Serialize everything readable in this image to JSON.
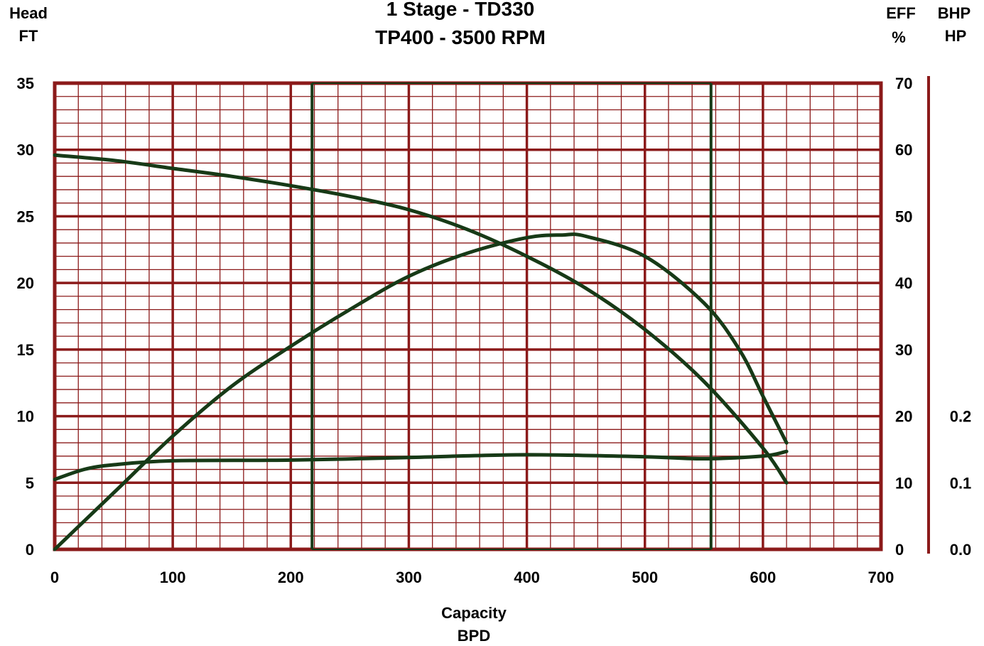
{
  "chart_data": {
    "type": "line",
    "title_lines": [
      "1 Stage - TD330",
      "TP400 - 3500 RPM"
    ],
    "left_axis": {
      "label_lines": [
        "Head",
        "FT"
      ],
      "ylim": [
        0,
        35
      ],
      "ticks": [
        0,
        5,
        10,
        15,
        20,
        25,
        30,
        35
      ]
    },
    "right_axis_eff": {
      "label_lines": [
        "EFF",
        "%"
      ],
      "ylim": [
        0,
        70
      ],
      "ticks": [
        0,
        10,
        20,
        30,
        40,
        50,
        60,
        70
      ]
    },
    "right_axis_bhp": {
      "label_lines": [
        "BHP",
        "HP"
      ],
      "ticks": [
        "0.0",
        "0.1",
        "0.2"
      ],
      "tick_head_equiv": [
        0,
        5,
        10
      ]
    },
    "x_axis": {
      "label_lines": [
        "Capacity",
        "BPD"
      ],
      "xlim": [
        0,
        700
      ],
      "ticks": [
        0,
        100,
        200,
        300,
        400,
        500,
        600,
        700
      ]
    },
    "grid": true,
    "recommended_range": [
      218,
      556
    ],
    "colors": {
      "grid": "#8b1a1a",
      "curve": "#173a17",
      "background": "#ffffff"
    },
    "series": [
      {
        "axis": "head",
        "x": [
          0,
          50,
          100,
          150,
          200,
          250,
          300,
          350,
          400,
          450,
          500,
          550,
          600,
          620
        ],
        "y": [
          29.6,
          29.2,
          28.6,
          28.0,
          27.3,
          26.5,
          25.5,
          24.0,
          22.0,
          19.6,
          16.5,
          12.6,
          7.6,
          5.0
        ]
      },
      {
        "axis": "eff",
        "x": [
          0,
          50,
          100,
          150,
          200,
          250,
          300,
          350,
          400,
          430,
          450,
          500,
          550,
          580,
          600,
          620
        ],
        "y": [
          0,
          8.5,
          17.0,
          24.5,
          30.5,
          36.0,
          41.0,
          44.5,
          46.8,
          47.2,
          47.0,
          44.0,
          37.0,
          30.0,
          23.0,
          16.0
        ]
      },
      {
        "axis": "bhp",
        "x": [
          0,
          25,
          50,
          100,
          200,
          300,
          400,
          500,
          550,
          600,
          620
        ],
        "y": [
          0.105,
          0.12,
          0.127,
          0.133,
          0.134,
          0.138,
          0.142,
          0.139,
          0.136,
          0.14,
          0.147
        ]
      }
    ]
  }
}
